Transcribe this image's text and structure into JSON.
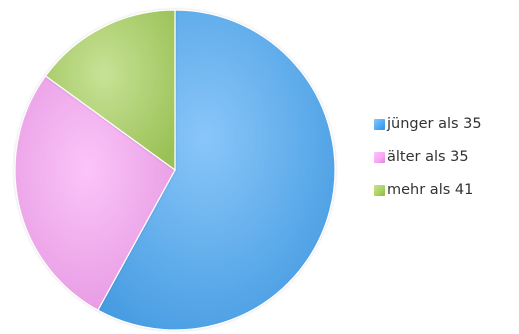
{
  "chart_data": {
    "type": "pie",
    "categories": [
      "jünger als 35",
      "älter als 35",
      "mehr als 41"
    ],
    "values": [
      58,
      27,
      15
    ],
    "colors": [
      "#4aa8f5",
      "#f9a4f5",
      "#a9d25e"
    ],
    "start_angle_deg": 0,
    "direction": "clockwise",
    "legend_placement": "right",
    "title": ""
  }
}
